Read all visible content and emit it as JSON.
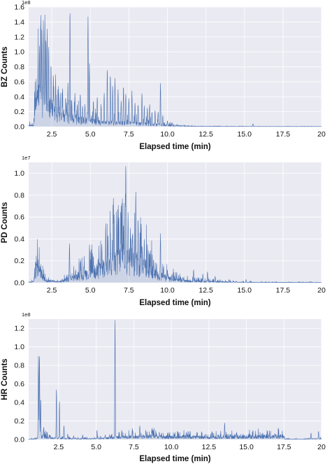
{
  "chart_data": [
    {
      "type": "line",
      "ylabel": "BZ Counts",
      "xlabel": "Elapsed time (min)",
      "y_multiplier_label": "1e8",
      "xlim": [
        1.0,
        20.0
      ],
      "ylim": [
        0,
        1.6
      ],
      "x_ticks": [
        2.5,
        5.0,
        7.5,
        10.0,
        12.5,
        15.0,
        17.5,
        20
      ],
      "x_tick_labels": [
        "2.5",
        "5.0",
        "7.5",
        "10.0",
        "12.5",
        "15.0",
        "17.5",
        "20"
      ],
      "y_ticks": [
        0.0,
        0.2,
        0.4,
        0.6,
        0.8,
        1.0,
        1.2,
        1.4,
        1.6
      ],
      "y_tick_labels": [
        "0.0",
        "0.2",
        "0.4",
        "0.6",
        "0.8",
        "1.0",
        "1.2",
        "1.4",
        "1.6"
      ],
      "color": "#4c72b0",
      "baseline": [
        [
          1.3,
          0.02
        ],
        [
          1.5,
          0.35
        ],
        [
          1.8,
          0.45
        ],
        [
          2.2,
          0.35
        ],
        [
          2.6,
          0.25
        ],
        [
          3.0,
          0.2
        ],
        [
          3.5,
          0.15
        ],
        [
          4.0,
          0.12
        ],
        [
          5.0,
          0.08
        ],
        [
          6.0,
          0.06
        ],
        [
          7.0,
          0.06
        ],
        [
          8.0,
          0.05
        ],
        [
          9.0,
          0.04
        ],
        [
          10.0,
          0.02
        ],
        [
          11.0,
          0.01
        ],
        [
          12.0,
          0.005
        ],
        [
          14.0,
          0.003
        ],
        [
          20.0,
          0.002
        ]
      ],
      "peaks": [
        [
          1.45,
          0.4
        ],
        [
          1.6,
          0.6
        ],
        [
          1.7,
          1.1
        ],
        [
          1.78,
          1.43
        ],
        [
          1.85,
          1.3
        ],
        [
          1.95,
          1.42
        ],
        [
          2.05,
          1.5
        ],
        [
          2.12,
          1.2
        ],
        [
          2.2,
          1.33
        ],
        [
          2.3,
          1.1
        ],
        [
          2.45,
          0.85
        ],
        [
          2.6,
          0.7
        ],
        [
          2.75,
          0.6
        ],
        [
          2.9,
          0.5
        ],
        [
          3.05,
          0.45
        ],
        [
          3.2,
          0.52
        ],
        [
          3.4,
          0.4
        ],
        [
          3.55,
          0.6
        ],
        [
          3.68,
          1.58
        ],
        [
          3.8,
          0.35
        ],
        [
          4.0,
          0.45
        ],
        [
          4.15,
          0.3
        ],
        [
          4.35,
          0.45
        ],
        [
          4.5,
          0.28
        ],
        [
          4.65,
          0.3
        ],
        [
          4.85,
          1.47
        ],
        [
          4.95,
          0.85
        ],
        [
          5.2,
          0.35
        ],
        [
          5.45,
          0.4
        ],
        [
          5.7,
          0.3
        ],
        [
          5.9,
          0.45
        ],
        [
          6.1,
          0.78
        ],
        [
          6.3,
          0.7
        ],
        [
          6.45,
          0.55
        ],
        [
          6.6,
          0.65
        ],
        [
          6.8,
          0.5
        ],
        [
          7.0,
          0.35
        ],
        [
          7.15,
          0.55
        ],
        [
          7.3,
          0.45
        ],
        [
          7.5,
          0.38
        ],
        [
          7.7,
          0.48
        ],
        [
          7.9,
          0.32
        ],
        [
          8.1,
          0.3
        ],
        [
          8.35,
          0.45
        ],
        [
          8.5,
          0.28
        ],
        [
          8.7,
          0.25
        ],
        [
          8.85,
          0.3
        ],
        [
          9.0,
          0.2
        ],
        [
          9.2,
          0.22
        ],
        [
          9.4,
          0.2
        ],
        [
          9.55,
          0.58
        ],
        [
          9.7,
          0.15
        ],
        [
          10.0,
          0.08
        ],
        [
          10.3,
          0.05
        ],
        [
          10.6,
          0.03
        ],
        [
          11.0,
          0.02
        ],
        [
          15.55,
          0.04
        ]
      ]
    },
    {
      "type": "line",
      "ylabel": "PD Counts",
      "xlabel": "Elapsed time (min)",
      "y_multiplier_label": "1e7",
      "xlim": [
        1.0,
        20.0
      ],
      "ylim": [
        0,
        1.1
      ],
      "x_ticks": [
        2.5,
        5.0,
        7.5,
        10.0,
        12.5,
        15.0,
        17.5,
        20
      ],
      "x_tick_labels": [
        "2.5",
        "5.0",
        "7.5",
        "10.0",
        "12.5",
        "15.0",
        "17.5",
        "20"
      ],
      "y_ticks": [
        0.0,
        0.2,
        0.4,
        0.6,
        0.8,
        1.0
      ],
      "y_tick_labels": [
        "0.0",
        "0.2",
        "0.4",
        "0.6",
        "0.8",
        "1.0"
      ],
      "color": "#4c72b0",
      "baseline": [
        [
          1.3,
          0.01
        ],
        [
          1.5,
          0.15
        ],
        [
          1.8,
          0.1
        ],
        [
          2.1,
          0.02
        ],
        [
          3.0,
          0.01
        ],
        [
          3.5,
          0.03
        ],
        [
          4.0,
          0.06
        ],
        [
          4.5,
          0.08
        ],
        [
          5.0,
          0.1
        ],
        [
          5.5,
          0.13
        ],
        [
          6.0,
          0.18
        ],
        [
          6.5,
          0.22
        ],
        [
          7.0,
          0.25
        ],
        [
          7.5,
          0.25
        ],
        [
          8.0,
          0.22
        ],
        [
          8.5,
          0.18
        ],
        [
          9.0,
          0.12
        ],
        [
          9.5,
          0.08
        ],
        [
          10.0,
          0.05
        ],
        [
          11.0,
          0.02
        ],
        [
          12.0,
          0.015
        ],
        [
          13.0,
          0.01
        ],
        [
          15.0,
          0.005
        ],
        [
          20.0,
          0.003
        ]
      ],
      "peaks": [
        [
          1.45,
          0.2
        ],
        [
          1.6,
          0.22
        ],
        [
          1.75,
          0.15
        ],
        [
          3.5,
          0.05
        ],
        [
          3.65,
          0.36
        ],
        [
          4.05,
          0.12
        ],
        [
          4.35,
          0.2
        ],
        [
          4.6,
          0.18
        ],
        [
          4.95,
          0.35
        ],
        [
          5.2,
          0.25
        ],
        [
          5.5,
          0.22
        ],
        [
          5.75,
          0.35
        ],
        [
          6.0,
          0.55
        ],
        [
          6.15,
          0.45
        ],
        [
          6.3,
          0.48
        ],
        [
          6.5,
          0.78
        ],
        [
          6.7,
          0.65
        ],
        [
          6.85,
          0.6
        ],
        [
          7.0,
          0.72
        ],
        [
          7.15,
          0.55
        ],
        [
          7.3,
          1.1
        ],
        [
          7.45,
          0.65
        ],
        [
          7.6,
          0.5
        ],
        [
          7.75,
          0.45
        ],
        [
          7.95,
          0.85
        ],
        [
          8.1,
          0.6
        ],
        [
          8.3,
          0.55
        ],
        [
          8.5,
          0.4
        ],
        [
          8.7,
          0.35
        ],
        [
          8.9,
          0.3
        ],
        [
          9.1,
          0.22
        ],
        [
          9.3,
          0.18
        ],
        [
          9.55,
          0.45
        ],
        [
          9.75,
          0.15
        ],
        [
          10.0,
          0.12
        ],
        [
          10.3,
          0.08
        ],
        [
          10.6,
          0.07
        ],
        [
          11.0,
          0.05
        ],
        [
          11.7,
          0.12
        ],
        [
          12.3,
          0.08
        ],
        [
          12.6,
          0.1
        ],
        [
          13.1,
          0.06
        ],
        [
          14.0,
          0.03
        ],
        [
          15.1,
          0.03
        ]
      ]
    },
    {
      "type": "line",
      "ylabel": "HR Counts",
      "xlabel": "Elapsed time (min)",
      "y_multiplier_label": "1e8",
      "xlim": [
        0.5,
        20.0
      ],
      "ylim": [
        0,
        1.3
      ],
      "x_ticks": [
        2.5,
        5.0,
        7.5,
        10.0,
        12.5,
        15.0,
        17.5,
        20
      ],
      "x_tick_labels": [
        "2.5",
        "5.0",
        "7.5",
        "10.0",
        "12.5",
        "15.0",
        "17.5",
        "20"
      ],
      "y_ticks": [
        0.0,
        0.2,
        0.4,
        0.6,
        0.8,
        1.0,
        1.2
      ],
      "y_tick_labels": [
        "0.0",
        "0.2",
        "0.4",
        "0.6",
        "0.8",
        "1.0",
        "1.2"
      ],
      "color": "#4c72b0",
      "baseline": [
        [
          0.5,
          0.003
        ],
        [
          1.0,
          0.01
        ],
        [
          1.3,
          0.05
        ],
        [
          2.0,
          0.02
        ],
        [
          3.0,
          0.01
        ],
        [
          4.0,
          0.008
        ],
        [
          5.0,
          0.01
        ],
        [
          6.0,
          0.02
        ],
        [
          6.5,
          0.03
        ],
        [
          7.5,
          0.03
        ],
        [
          8.5,
          0.04
        ],
        [
          9.5,
          0.03
        ],
        [
          10.5,
          0.03
        ],
        [
          11.5,
          0.03
        ],
        [
          12.5,
          0.025
        ],
        [
          13.5,
          0.03
        ],
        [
          14.5,
          0.035
        ],
        [
          15.5,
          0.035
        ],
        [
          16.5,
          0.035
        ],
        [
          17.5,
          0.04
        ],
        [
          17.55,
          0.005
        ],
        [
          19.0,
          0.005
        ],
        [
          20.0,
          0.01
        ]
      ],
      "peaks": [
        [
          1.15,
          0.9
        ],
        [
          1.22,
          0.93
        ],
        [
          1.3,
          0.45
        ],
        [
          1.5,
          0.12
        ],
        [
          1.9,
          0.05
        ],
        [
          2.35,
          0.55
        ],
        [
          2.55,
          0.42
        ],
        [
          2.85,
          0.15
        ],
        [
          3.1,
          0.06
        ],
        [
          3.5,
          0.04
        ],
        [
          4.1,
          0.05
        ],
        [
          5.05,
          0.1
        ],
        [
          5.6,
          0.05
        ],
        [
          6.25,
          1.32
        ],
        [
          6.7,
          0.1
        ],
        [
          7.4,
          0.12
        ],
        [
          7.9,
          0.15
        ],
        [
          8.3,
          0.1
        ],
        [
          8.7,
          0.11
        ],
        [
          9.2,
          0.08
        ],
        [
          10.2,
          0.06
        ],
        [
          11.0,
          0.08
        ],
        [
          12.3,
          0.06
        ],
        [
          12.7,
          0.09
        ],
        [
          13.55,
          0.18
        ],
        [
          13.95,
          0.06
        ],
        [
          14.35,
          0.08
        ],
        [
          15.4,
          0.05
        ],
        [
          16.5,
          0.05
        ],
        [
          19.3,
          0.07
        ],
        [
          19.8,
          0.09
        ]
      ]
    }
  ]
}
